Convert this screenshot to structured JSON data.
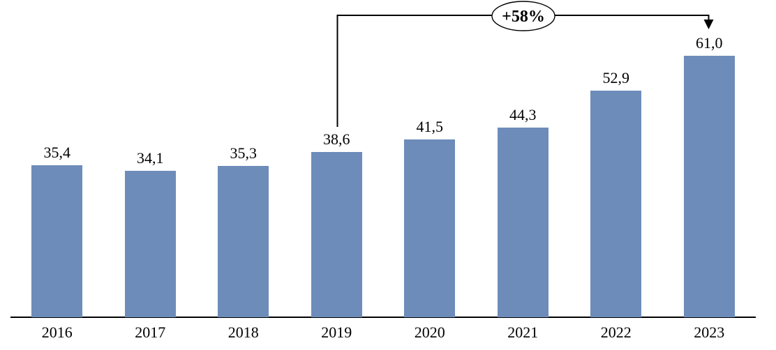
{
  "chart_data": {
    "type": "bar",
    "categories": [
      "2016",
      "2017",
      "2018",
      "2019",
      "2020",
      "2021",
      "2022",
      "2023"
    ],
    "values": [
      35.4,
      34.1,
      35.3,
      38.6,
      41.5,
      44.3,
      52.9,
      61.0
    ],
    "value_labels": [
      "35,4",
      "34,1",
      "35,3",
      "38,6",
      "41,5",
      "44,3",
      "52,9",
      "61,0"
    ],
    "title": "",
    "xlabel": "",
    "ylabel": "",
    "ylim": [
      0,
      65
    ],
    "grid": false,
    "legend": false,
    "annotation": {
      "label": "+58%",
      "from_category": "2019",
      "to_category": "2023"
    }
  },
  "colors": {
    "bar": "#6D8CBA",
    "line": "#000000",
    "text": "#000000",
    "background": "#FFFFFF",
    "annotation_bubble_fill": "#FFFFFF",
    "annotation_bubble_stroke": "#000000"
  }
}
